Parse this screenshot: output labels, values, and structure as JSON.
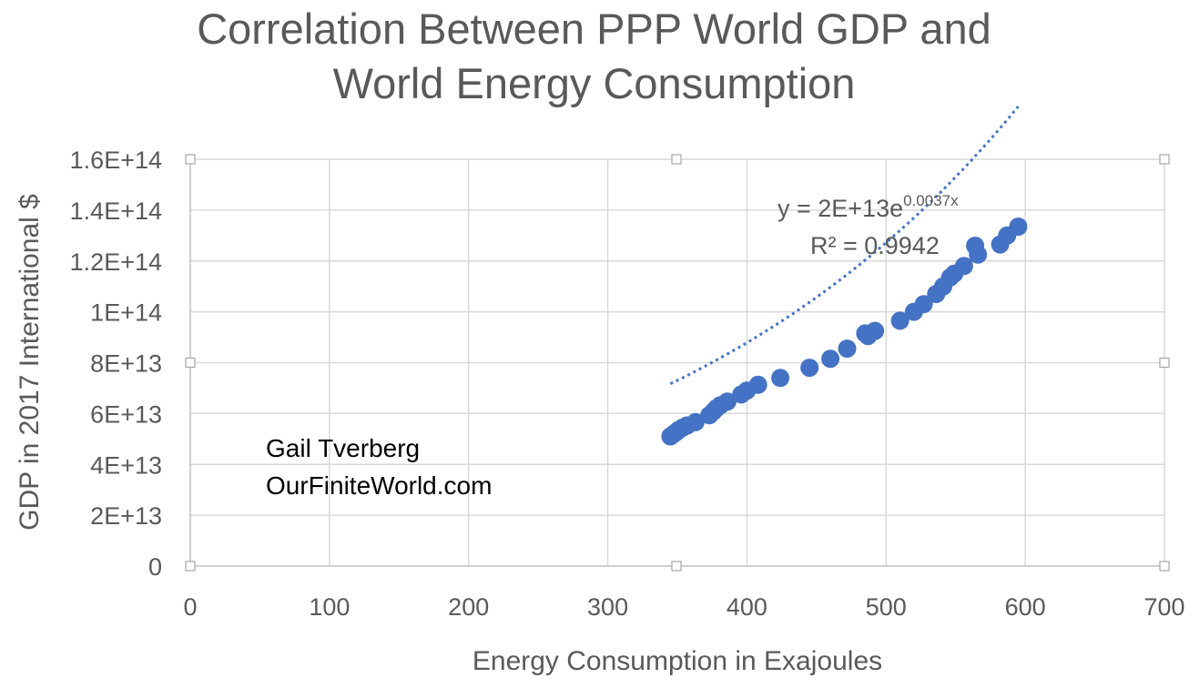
{
  "chart_data": {
    "type": "scatter",
    "title_lines": [
      "Correlation Between PPP World GDP and",
      "World Energy Consumption"
    ],
    "xlabel": "Energy Consumption in Exajoules",
    "ylabel": "GDP in 2017 International $",
    "xlim": [
      0,
      700
    ],
    "ylim": [
      0,
      160000000000000
    ],
    "x_ticks": [
      "0",
      "100",
      "200",
      "300",
      "400",
      "500",
      "600",
      "700"
    ],
    "y_ticks": [
      "0",
      "2E+13",
      "4E+13",
      "6E+13",
      "8E+13",
      "1E+14",
      "1.2E+14",
      "1.4E+14",
      "1.6E+14"
    ],
    "grid": true,
    "marker_color": "#4472C4",
    "trendline": {
      "type": "exponential",
      "a": 20000000000000,
      "b": 0.0037,
      "style": "dotted"
    },
    "equation": {
      "prefix": "y = 2E+13e",
      "exponent": "0.0037x"
    },
    "r_squared": "R² = 0.9942",
    "annotations": [
      "Gail Tverberg",
      "OurFiniteWorld.com"
    ],
    "points": [
      {
        "x": 345,
        "y": 51000000000000
      },
      {
        "x": 347,
        "y": 51800000000000
      },
      {
        "x": 349,
        "y": 52600000000000
      },
      {
        "x": 351,
        "y": 53500000000000
      },
      {
        "x": 354,
        "y": 54500000000000
      },
      {
        "x": 357,
        "y": 55300000000000
      },
      {
        "x": 363,
        "y": 56600000000000
      },
      {
        "x": 373,
        "y": 59300000000000
      },
      {
        "x": 376,
        "y": 60800000000000
      },
      {
        "x": 378,
        "y": 62000000000000
      },
      {
        "x": 381,
        "y": 63300000000000
      },
      {
        "x": 386,
        "y": 64700000000000
      },
      {
        "x": 396,
        "y": 67500000000000
      },
      {
        "x": 400,
        "y": 69000000000000
      },
      {
        "x": 408,
        "y": 71300000000000
      },
      {
        "x": 424,
        "y": 74000000000000
      },
      {
        "x": 445,
        "y": 78000000000000
      },
      {
        "x": 460,
        "y": 81500000000000
      },
      {
        "x": 472,
        "y": 85500000000000
      },
      {
        "x": 485,
        "y": 91500000000000
      },
      {
        "x": 487,
        "y": 90500000000000
      },
      {
        "x": 492,
        "y": 92500000000000
      },
      {
        "x": 510,
        "y": 96500000000000
      },
      {
        "x": 520,
        "y": 100000000000000
      },
      {
        "x": 527,
        "y": 103000000000000
      },
      {
        "x": 536,
        "y": 107000000000000
      },
      {
        "x": 541,
        "y": 110000000000000
      },
      {
        "x": 546,
        "y": 113500000000000
      },
      {
        "x": 549,
        "y": 115000000000000
      },
      {
        "x": 556,
        "y": 118000000000000
      },
      {
        "x": 564,
        "y": 126000000000000
      },
      {
        "x": 566,
        "y": 122500000000000
      },
      {
        "x": 582,
        "y": 126500000000000
      },
      {
        "x": 587,
        "y": 130000000000000
      },
      {
        "x": 595,
        "y": 133500000000000
      }
    ]
  }
}
